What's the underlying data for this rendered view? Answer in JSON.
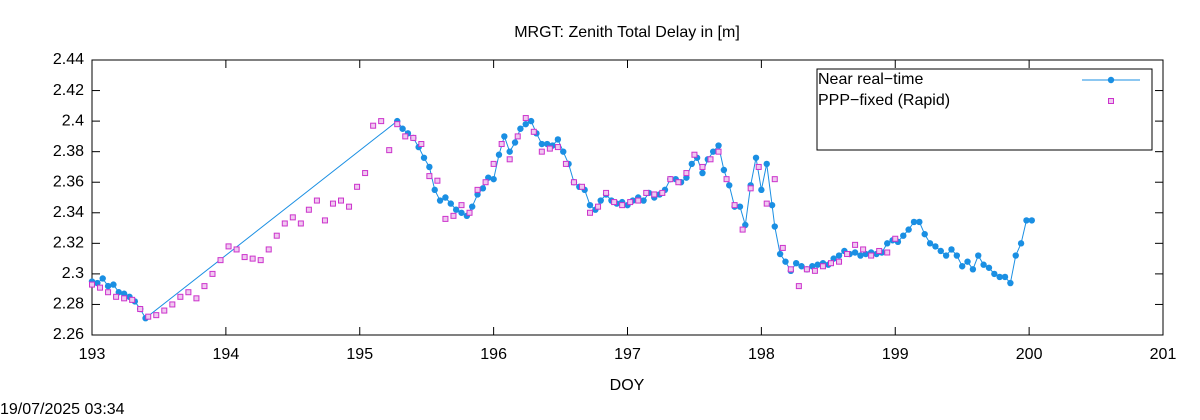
{
  "chart_data": {
    "type": "line",
    "title": "MRGT: Zenith Total Delay in [m]",
    "x_label": "DOY",
    "timestamp": "19/07/2025 03:34",
    "xlim": [
      193,
      201
    ],
    "xticks": [
      193,
      194,
      195,
      196,
      197,
      198,
      199,
      200,
      201
    ],
    "ylim": [
      2.26,
      2.44
    ],
    "yticks": [
      2.26,
      2.28,
      2.3,
      2.32,
      2.34,
      2.36,
      2.38,
      2.4,
      2.42,
      2.44
    ],
    "legend": "upper right",
    "series": [
      {
        "name": "Near real−time",
        "color": "#1a8fe3",
        "style": "linespoints",
        "x": [
          193.0,
          193.04,
          193.08,
          193.12,
          193.16,
          193.2,
          193.24,
          193.28,
          193.32,
          193.36,
          193.4,
          195.28,
          195.32,
          195.36,
          195.4,
          195.44,
          195.48,
          195.52,
          195.56,
          195.6,
          195.64,
          195.68,
          195.72,
          195.76,
          195.8,
          195.84,
          195.88,
          195.92,
          195.96,
          196.0,
          196.04,
          196.08,
          196.12,
          196.16,
          196.2,
          196.24,
          196.28,
          196.32,
          196.36,
          196.4,
          196.44,
          196.48,
          196.52,
          196.56,
          196.6,
          196.64,
          196.68,
          196.72,
          196.76,
          196.8,
          196.84,
          196.88,
          196.92,
          196.96,
          197.0,
          197.04,
          197.08,
          197.12,
          197.16,
          197.2,
          197.24,
          197.28,
          197.32,
          197.36,
          197.4,
          197.44,
          197.48,
          197.52,
          197.56,
          197.6,
          197.64,
          197.68,
          197.72,
          197.76,
          197.8,
          197.84,
          197.88,
          197.92,
          197.96,
          198.0,
          198.04,
          198.08,
          198.1,
          198.14,
          198.18,
          198.22,
          198.26,
          198.3,
          198.34,
          198.38,
          198.42,
          198.46,
          198.5,
          198.54,
          198.58,
          198.62,
          198.66,
          198.7,
          198.74,
          198.78,
          198.82,
          198.86,
          198.9,
          198.94,
          198.98,
          199.02,
          199.06,
          199.1,
          199.14,
          199.18,
          199.22,
          199.26,
          199.3,
          199.34,
          199.38,
          199.42,
          199.46,
          199.5,
          199.54,
          199.58,
          199.62,
          199.66,
          199.7,
          199.74,
          199.78,
          199.82,
          199.86,
          199.9,
          199.94,
          199.98,
          200.02
        ],
        "values": [
          2.295,
          2.294,
          2.297,
          2.292,
          2.293,
          2.288,
          2.287,
          2.285,
          2.282,
          2.277,
          2.271,
          2.4,
          2.395,
          2.392,
          2.389,
          2.383,
          2.376,
          2.37,
          2.355,
          2.348,
          2.35,
          2.346,
          2.342,
          2.34,
          2.338,
          2.344,
          2.352,
          2.356,
          2.363,
          2.362,
          2.378,
          2.39,
          2.38,
          2.386,
          2.395,
          2.398,
          2.4,
          2.392,
          2.385,
          2.385,
          2.384,
          2.388,
          2.38,
          2.372,
          2.36,
          2.357,
          2.355,
          2.345,
          2.342,
          2.348,
          2.352,
          2.348,
          2.346,
          2.347,
          2.345,
          2.348,
          2.35,
          2.348,
          2.353,
          2.35,
          2.352,
          2.355,
          2.362,
          2.362,
          2.36,
          2.363,
          2.372,
          2.376,
          2.366,
          2.375,
          2.38,
          2.384,
          2.368,
          2.358,
          2.344,
          2.344,
          2.332,
          2.358,
          2.376,
          2.355,
          2.372,
          2.345,
          2.331,
          2.313,
          2.308,
          2.302,
          2.307,
          2.305,
          2.303,
          2.305,
          2.306,
          2.307,
          2.306,
          2.31,
          2.312,
          2.315,
          2.313,
          2.314,
          2.312,
          2.313,
          2.314,
          2.313,
          2.314,
          2.32,
          2.322,
          2.321,
          2.325,
          2.329,
          2.334,
          2.334,
          2.326,
          2.32,
          2.318,
          2.315,
          2.312,
          2.316,
          2.312,
          2.305,
          2.308,
          2.303,
          2.312,
          2.306,
          2.304,
          2.3,
          2.298,
          2.298,
          2.294,
          2.312,
          2.32,
          2.335,
          2.335
        ]
      },
      {
        "name": "PPP−fixed (Rapid)",
        "color": "#cc33cc",
        "style": "points",
        "x": [
          193.0,
          193.06,
          193.12,
          193.18,
          193.24,
          193.3,
          193.36,
          193.42,
          193.48,
          193.54,
          193.6,
          193.66,
          193.72,
          193.78,
          193.84,
          193.9,
          193.96,
          194.02,
          194.08,
          194.14,
          194.2,
          194.26,
          194.32,
          194.38,
          194.44,
          194.5,
          194.56,
          194.62,
          194.68,
          194.74,
          194.8,
          194.86,
          194.92,
          194.98,
          195.04,
          195.1,
          195.16,
          195.22,
          195.28,
          195.34,
          195.4,
          195.46,
          195.52,
          195.58,
          195.64,
          195.7,
          195.76,
          195.82,
          195.88,
          195.94,
          196.0,
          196.06,
          196.12,
          196.18,
          196.24,
          196.3,
          196.36,
          196.42,
          196.48,
          196.54,
          196.6,
          196.66,
          196.72,
          196.78,
          196.84,
          196.9,
          196.96,
          197.02,
          197.08,
          197.14,
          197.2,
          197.26,
          197.32,
          197.38,
          197.44,
          197.5,
          197.56,
          197.62,
          197.68,
          197.74,
          197.8,
          197.86,
          197.92,
          197.98,
          198.04,
          198.1,
          198.16,
          198.22,
          198.28,
          198.34,
          198.4,
          198.46,
          198.52,
          198.58,
          198.64,
          198.7,
          198.76,
          198.82,
          198.88,
          198.94,
          199.0
        ],
        "values": [
          2.293,
          2.291,
          2.288,
          2.285,
          2.284,
          2.283,
          2.277,
          2.272,
          2.273,
          2.276,
          2.28,
          2.285,
          2.288,
          2.284,
          2.292,
          2.3,
          2.309,
          2.318,
          2.316,
          2.311,
          2.31,
          2.309,
          2.316,
          2.325,
          2.333,
          2.337,
          2.333,
          2.342,
          2.348,
          2.335,
          2.346,
          2.348,
          2.344,
          2.357,
          2.366,
          2.397,
          2.4,
          2.381,
          2.398,
          2.39,
          2.389,
          2.385,
          2.364,
          2.361,
          2.336,
          2.338,
          2.345,
          2.34,
          2.355,
          2.36,
          2.372,
          2.385,
          2.375,
          2.39,
          2.402,
          2.393,
          2.38,
          2.382,
          2.383,
          2.372,
          2.36,
          2.357,
          2.34,
          2.344,
          2.353,
          2.347,
          2.345,
          2.347,
          2.348,
          2.353,
          2.352,
          2.353,
          2.362,
          2.36,
          2.366,
          2.378,
          2.37,
          2.375,
          2.38,
          2.362,
          2.345,
          2.329,
          2.356,
          2.37,
          2.346,
          2.362,
          2.317,
          2.303,
          2.292,
          2.303,
          2.302,
          2.305,
          2.307,
          2.308,
          2.313,
          2.319,
          2.316,
          2.312,
          2.315,
          2.314,
          2.323
        ]
      }
    ]
  }
}
